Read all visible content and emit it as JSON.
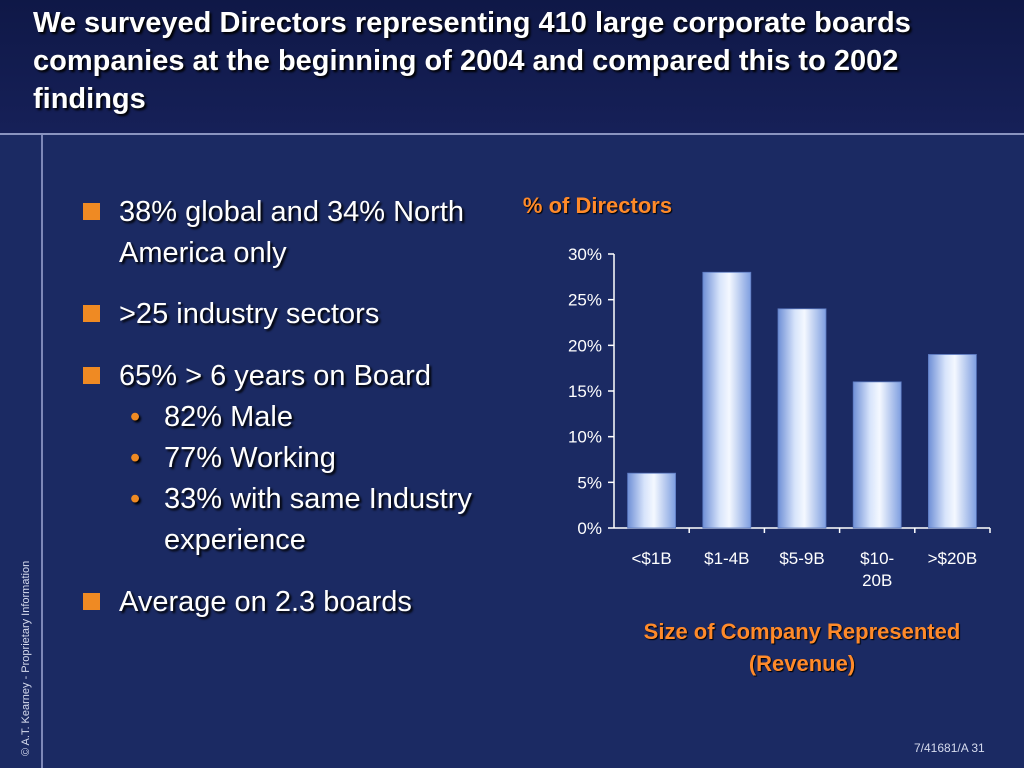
{
  "slide": {
    "title": "We surveyed Directors representing 410 large corporate boards companies at the beginning of 2004 and compared this to 2002 findings",
    "copyright": "© A.T. Kearney - Proprietary Information",
    "footer": "7/41681/A  31"
  },
  "bullets": [
    {
      "text": "38% global and 34% North America only",
      "sub": []
    },
    {
      "text": ">25 industry sectors",
      "sub": []
    },
    {
      "text": "65% > 6 years on Board",
      "sub": [
        "82% Male",
        "77% Working",
        "33% with same Industry experience"
      ]
    },
    {
      "text": "Average on 2.3 boards",
      "sub": []
    }
  ],
  "colors": {
    "accent": "#ef8a23",
    "background": "#1b2a63",
    "bar": "#a7bff0"
  },
  "chart_data": {
    "type": "bar",
    "title": "% of Directors",
    "xlabel": "Size of Company Represented (Revenue)",
    "ylabel": "",
    "categories": [
      "<$1B",
      "$1-4B",
      "$5-9B",
      "$10-20B",
      ">$20B"
    ],
    "category_lines": [
      [
        "<$1B"
      ],
      [
        "$1-4B"
      ],
      [
        "$5-9B"
      ],
      [
        "$10-",
        "20B"
      ],
      [
        ">$20B"
      ]
    ],
    "values": [
      6,
      28,
      24,
      16,
      19
    ],
    "ylim": [
      0,
      30
    ],
    "yticks": [
      "0%",
      "5%",
      "10%",
      "15%",
      "20%",
      "25%",
      "30%"
    ],
    "grid": false
  }
}
